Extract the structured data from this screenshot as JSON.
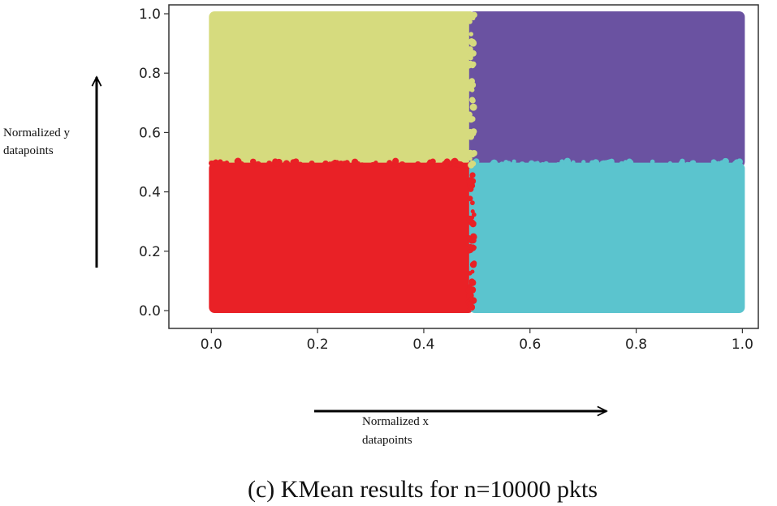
{
  "chart_data": {
    "type": "scatter",
    "title": "",
    "xlabel": [
      "Normalized x",
      "datapoints"
    ],
    "ylabel": [
      "Normalized y",
      "datapoints"
    ],
    "xlim": [
      -0.08,
      1.03
    ],
    "ylim": [
      -0.06,
      1.03
    ],
    "xticks": [
      0.0,
      0.2,
      0.4,
      0.6,
      0.8,
      1.0
    ],
    "xtick_labels": [
      "0.0",
      "0.2",
      "0.4",
      "0.6",
      "0.8",
      "1.0"
    ],
    "yticks": [
      0.0,
      0.2,
      0.4,
      0.6,
      0.8,
      1.0
    ],
    "ytick_labels": [
      "0.0",
      "0.2",
      "0.4",
      "0.6",
      "0.8",
      "1.0"
    ],
    "grid": false,
    "legend": "none",
    "n_points": 10000,
    "clusters": [
      {
        "name": "cluster-top-left",
        "color": "#d6db7e",
        "x_range": [
          0.0,
          0.49
        ],
        "y_range": [
          0.49,
          1.0
        ]
      },
      {
        "name": "cluster-top-right",
        "color": "#6a52a1",
        "x_range": [
          0.49,
          1.0
        ],
        "y_range": [
          0.49,
          1.0
        ]
      },
      {
        "name": "cluster-bottom-left",
        "color": "#e92126",
        "x_range": [
          0.0,
          0.49
        ],
        "y_range": [
          0.0,
          0.49
        ]
      },
      {
        "name": "cluster-bottom-right",
        "color": "#5bc4ce",
        "x_range": [
          0.49,
          1.0
        ],
        "y_range": [
          0.0,
          0.49
        ]
      }
    ]
  },
  "caption": "(c) KMean results for n=10000 pkts"
}
